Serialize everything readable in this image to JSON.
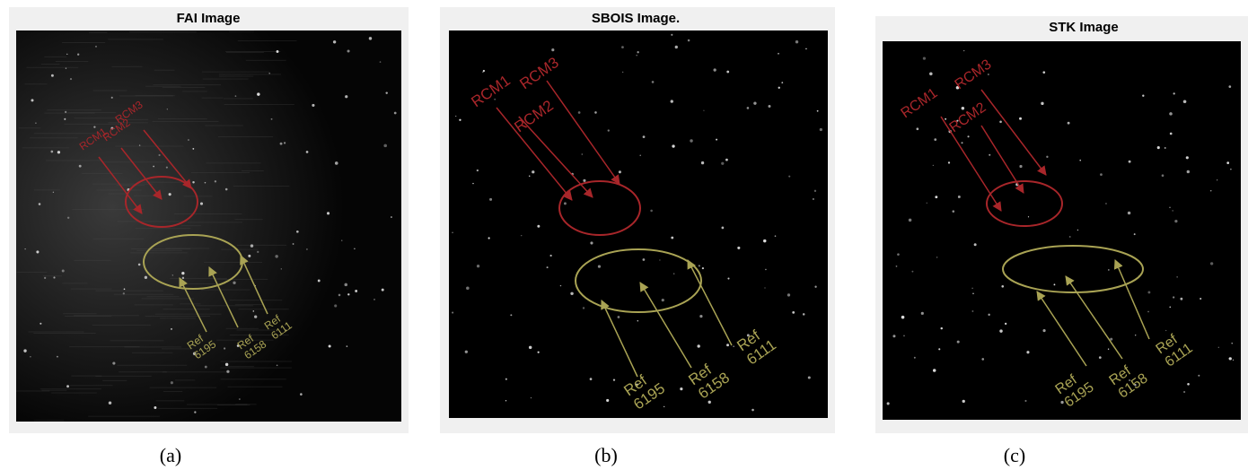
{
  "panels": [
    {
      "title": "FAI Image",
      "caption": "(a)",
      "rcm": [
        "RCM1",
        "RCM2",
        "RCM3"
      ],
      "refs": [
        [
          "Ref",
          "6195"
        ],
        [
          "Ref",
          "6158"
        ],
        [
          "Ref",
          "6111"
        ]
      ]
    },
    {
      "title": "SBOIS Image.",
      "caption": "(b)",
      "rcm": [
        "RCM1",
        "RCM2",
        "RCM3"
      ],
      "refs": [
        [
          "Ref",
          "6195"
        ],
        [
          "Ref",
          "6158"
        ],
        [
          "Ref",
          "6111"
        ]
      ]
    },
    {
      "title": "STK Image",
      "caption": "(c)",
      "rcm": [
        "RCM1",
        "RCM2",
        "RCM3"
      ],
      "refs": [
        [
          "Ref",
          "6195"
        ],
        [
          "Ref",
          "6158"
        ],
        [
          "Ref",
          "6111"
        ]
      ]
    }
  ]
}
